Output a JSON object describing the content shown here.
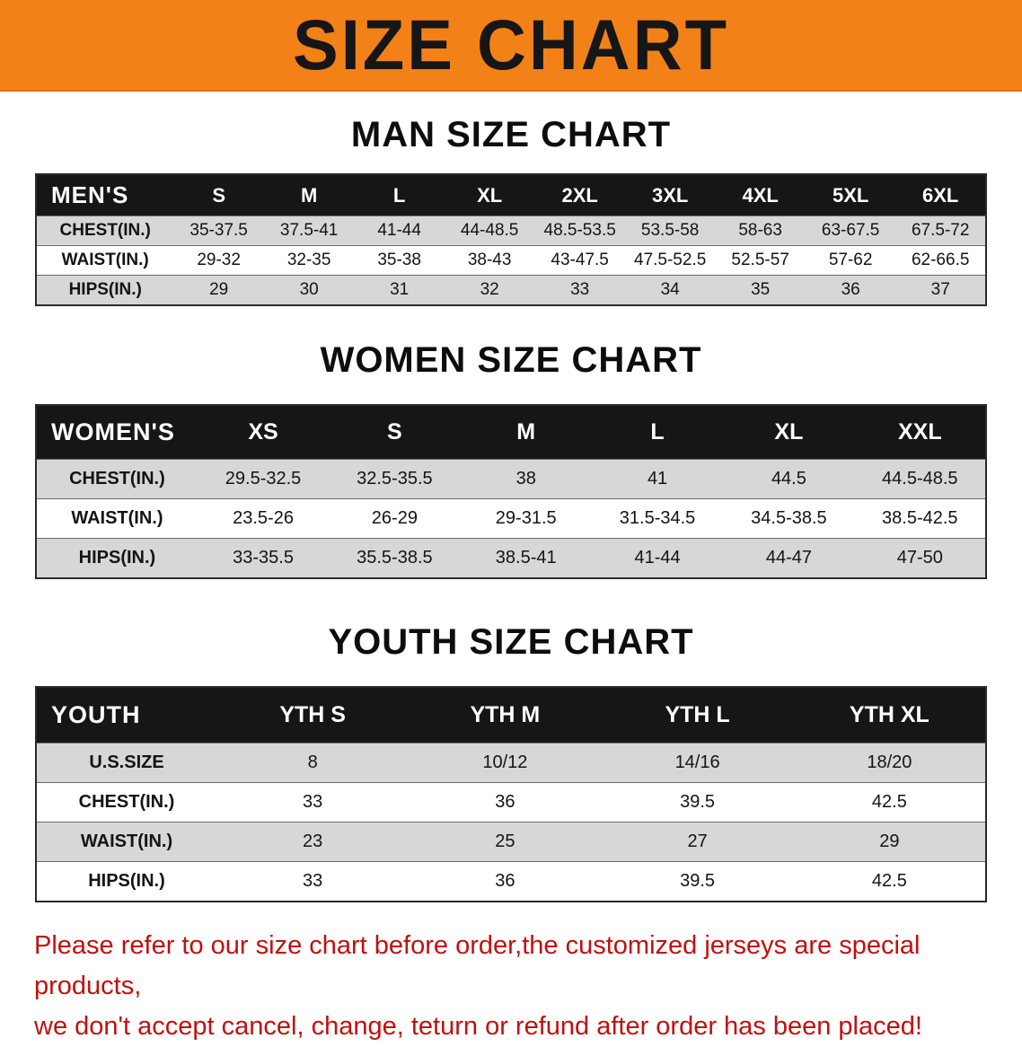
{
  "banner": {
    "title": "SIZE CHART"
  },
  "colors": {
    "banner_bg": "#f28118",
    "header_bg": "#161616",
    "row_stripe": "#d7d7d7",
    "footer_text": "#c11010"
  },
  "sections": [
    {
      "heading": "MAN SIZE CHART",
      "table": {
        "label": "MEN'S",
        "columns": [
          "S",
          "M",
          "L",
          "XL",
          "2XL",
          "3XL",
          "4XL",
          "5XL",
          "6XL"
        ],
        "rows": [
          {
            "label": "CHEST(IN.)",
            "values": [
              "35-37.5",
              "37.5-41",
              "41-44",
              "44-48.5",
              "48.5-53.5",
              "53.5-58",
              "58-63",
              "63-67.5",
              "67.5-72"
            ]
          },
          {
            "label": "WAIST(IN.)",
            "values": [
              "29-32",
              "32-35",
              "35-38",
              "38-43",
              "43-47.5",
              "47.5-52.5",
              "52.5-57",
              "57-62",
              "62-66.5"
            ]
          },
          {
            "label": "HIPS(IN.)",
            "values": [
              "29",
              "30",
              "31",
              "32",
              "33",
              "34",
              "35",
              "36",
              "37"
            ]
          }
        ]
      }
    },
    {
      "heading": "WOMEN SIZE CHART",
      "table": {
        "label": "WOMEN'S",
        "columns": [
          "XS",
          "S",
          "M",
          "L",
          "XL",
          "XXL"
        ],
        "rows": [
          {
            "label": "CHEST(IN.)",
            "values": [
              "29.5-32.5",
              "32.5-35.5",
              "38",
              "41",
              "44.5",
              "44.5-48.5"
            ]
          },
          {
            "label": "WAIST(IN.)",
            "values": [
              "23.5-26",
              "26-29",
              "29-31.5",
              "31.5-34.5",
              "34.5-38.5",
              "38.5-42.5"
            ]
          },
          {
            "label": "HIPS(IN.)",
            "values": [
              "33-35.5",
              "35.5-38.5",
              "38.5-41",
              "41-44",
              "44-47",
              "47-50"
            ]
          }
        ]
      }
    },
    {
      "heading": "YOUTH SIZE CHART",
      "table": {
        "label": "YOUTH",
        "columns": [
          "YTH S",
          "YTH M",
          "YTH L",
          "YTH XL"
        ],
        "rows": [
          {
            "label": "U.S.SIZE",
            "values": [
              "8",
              "10/12",
              "14/16",
              "18/20"
            ]
          },
          {
            "label": "CHEST(IN.)",
            "values": [
              "33",
              "36",
              "39.5",
              "42.5"
            ]
          },
          {
            "label": "WAIST(IN.)",
            "values": [
              "23",
              "25",
              "27",
              "29"
            ]
          },
          {
            "label": "HIPS(IN.)",
            "values": [
              "33",
              "36",
              "39.5",
              "42.5"
            ]
          }
        ]
      }
    }
  ],
  "footer": {
    "line1": "Please refer to our size chart before order,the customized jerseys are special products,",
    "line2": "we don't accept cancel, change, teturn or refund after order has been placed!"
  }
}
